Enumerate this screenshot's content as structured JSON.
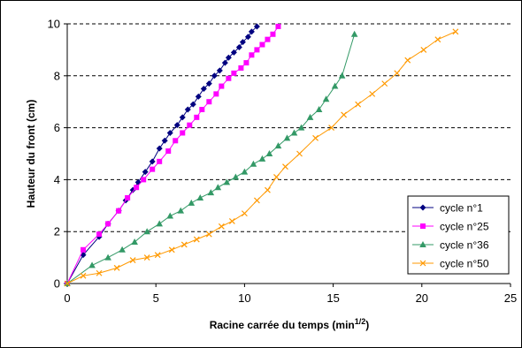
{
  "chart_data": {
    "type": "scatter",
    "xlabel": "Racine carrée du temps (min",
    "xlabel_sup": "1/2",
    "xlabel_end": ")",
    "ylabel": "Hauteur du front (cm)",
    "xlim": [
      0,
      25
    ],
    "ylim": [
      0,
      10
    ],
    "xticks": [
      0,
      5,
      10,
      15,
      20,
      25
    ],
    "yticks": [
      0,
      2,
      4,
      6,
      8,
      10
    ],
    "grid": "horizontal dashed",
    "legend": "right",
    "series": [
      {
        "name": "cycle n°1",
        "color": "#000080",
        "marker": "diamond",
        "x": [
          0,
          0.9,
          1.8,
          2.3,
          2.9,
          3.3,
          3.7,
          4.0,
          4.4,
          4.8,
          5.2,
          5.5,
          5.8,
          6.2,
          6.5,
          6.8,
          7.1,
          7.4,
          7.7,
          8.0,
          8.3,
          8.6,
          8.9,
          9.1,
          9.4,
          9.7,
          9.9,
          10.2,
          10.4,
          10.7
        ],
        "y": [
          0,
          1.1,
          1.8,
          2.3,
          2.8,
          3.2,
          3.6,
          3.9,
          4.3,
          4.7,
          5.2,
          5.5,
          5.8,
          6.1,
          6.4,
          6.7,
          6.9,
          7.2,
          7.5,
          7.7,
          8.0,
          8.2,
          8.5,
          8.7,
          8.9,
          9.1,
          9.3,
          9.5,
          9.7,
          9.9
        ]
      },
      {
        "name": "cycle n°25",
        "color": "#FF00FF",
        "marker": "square",
        "x": [
          0,
          0.9,
          1.8,
          2.3,
          2.9,
          3.4,
          3.9,
          4.3,
          4.8,
          5.2,
          5.7,
          6.1,
          6.5,
          6.9,
          7.3,
          7.6,
          8.0,
          8.4,
          8.7,
          9.1,
          9.4,
          9.8,
          10.1,
          10.4,
          10.7,
          11.0,
          11.3,
          11.6,
          11.9
        ],
        "y": [
          0,
          1.3,
          1.9,
          2.3,
          2.8,
          3.3,
          3.7,
          4.0,
          4.4,
          4.7,
          5.1,
          5.5,
          5.8,
          6.1,
          6.4,
          6.7,
          7.0,
          7.3,
          7.6,
          7.9,
          8.1,
          8.3,
          8.5,
          8.8,
          9.0,
          9.2,
          9.4,
          9.6,
          9.9
        ]
      },
      {
        "name": "cycle n°36",
        "color": "#339966",
        "marker": "triangle",
        "x": [
          0,
          1.4,
          2.3,
          3.1,
          3.8,
          4.5,
          5.2,
          5.8,
          6.4,
          7.0,
          7.5,
          8.1,
          8.5,
          9.0,
          9.5,
          10.0,
          10.5,
          11.0,
          11.4,
          11.9,
          12.4,
          12.8,
          13.2,
          13.7,
          14.2,
          14.6,
          15.1,
          15.5,
          16.2
        ],
        "y": [
          0,
          0.7,
          1.0,
          1.3,
          1.6,
          2.0,
          2.3,
          2.6,
          2.8,
          3.1,
          3.3,
          3.5,
          3.7,
          3.9,
          4.1,
          4.3,
          4.6,
          4.8,
          5.0,
          5.3,
          5.6,
          5.8,
          6.0,
          6.4,
          6.7,
          7.1,
          7.6,
          8.0,
          9.6
        ]
      },
      {
        "name": "cycle n°50",
        "color": "#FF9900",
        "marker": "x",
        "x": [
          0,
          0.9,
          1.8,
          2.8,
          3.7,
          4.5,
          5.1,
          5.9,
          6.6,
          7.3,
          8.0,
          8.7,
          9.3,
          10.0,
          10.7,
          11.3,
          11.8,
          12.3,
          13.1,
          14.0,
          14.9,
          15.6,
          16.4,
          17.2,
          17.9,
          18.6,
          19.2,
          20.1,
          20.9,
          21.9
        ],
        "y": [
          0,
          0.3,
          0.4,
          0.6,
          0.9,
          1.0,
          1.1,
          1.3,
          1.5,
          1.7,
          1.9,
          2.2,
          2.4,
          2.7,
          3.2,
          3.6,
          4.1,
          4.5,
          5.0,
          5.6,
          6.0,
          6.5,
          6.9,
          7.3,
          7.7,
          8.1,
          8.6,
          9.0,
          9.4,
          9.7
        ]
      }
    ]
  }
}
